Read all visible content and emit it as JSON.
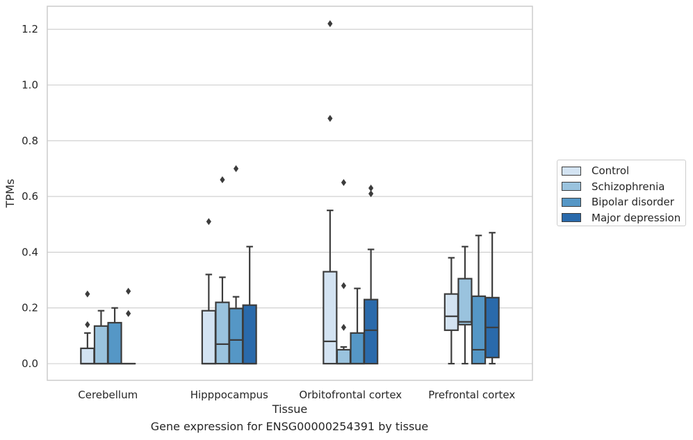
{
  "chart_data": {
    "type": "box",
    "xlabel": "Tissue",
    "ylabel": "TPMs",
    "ylim": [
      -0.06,
      1.28
    ],
    "yticks": [
      0.0,
      0.2,
      0.4,
      0.6,
      0.8,
      1.0,
      1.2
    ],
    "ytick_labels": [
      "0.0",
      "0.2",
      "0.4",
      "0.6",
      "0.8",
      "1.0",
      "1.2"
    ],
    "grid": "horizontal",
    "legend_position": "right",
    "categories": [
      "Cerebellum",
      "Hipppocampus",
      "Orbitofrontal cortex",
      "Prefrontal cortex"
    ],
    "series": [
      {
        "name": "Control",
        "color": "#d3e3f2",
        "boxes": [
          {
            "whisker_low": 0.0,
            "q1": 0.0,
            "median": 0.0,
            "q3": 0.055,
            "whisker_high": 0.11,
            "outliers": [
              0.14,
              0.25
            ]
          },
          {
            "whisker_low": 0.0,
            "q1": 0.0,
            "median": 0.0,
            "q3": 0.19,
            "whisker_high": 0.32,
            "outliers": [
              0.51
            ]
          },
          {
            "whisker_low": 0.0,
            "q1": 0.0,
            "median": 0.08,
            "q3": 0.33,
            "whisker_high": 0.55,
            "outliers": [
              0.88,
              1.22
            ]
          },
          {
            "whisker_low": 0.0,
            "q1": 0.12,
            "median": 0.17,
            "q3": 0.25,
            "whisker_high": 0.38,
            "outliers": []
          }
        ]
      },
      {
        "name": "Schizophrenia",
        "color": "#9ac3de",
        "boxes": [
          {
            "whisker_low": 0.0,
            "q1": 0.0,
            "median": 0.0,
            "q3": 0.135,
            "whisker_high": 0.19,
            "outliers": []
          },
          {
            "whisker_low": 0.0,
            "q1": 0.0,
            "median": 0.07,
            "q3": 0.22,
            "whisker_high": 0.31,
            "outliers": [
              0.66
            ]
          },
          {
            "whisker_low": 0.0,
            "q1": 0.0,
            "median": 0.0,
            "q3": 0.05,
            "whisker_high": 0.06,
            "outliers": [
              0.13,
              0.28,
              0.65
            ]
          },
          {
            "whisker_low": 0.0,
            "q1": 0.14,
            "median": 0.15,
            "q3": 0.305,
            "whisker_high": 0.42,
            "outliers": []
          }
        ]
      },
      {
        "name": "Bipolar disorder",
        "color": "#5597c6",
        "boxes": [
          {
            "whisker_low": 0.0,
            "q1": 0.0,
            "median": 0.0,
            "q3": 0.147,
            "whisker_high": 0.2,
            "outliers": []
          },
          {
            "whisker_low": 0.0,
            "q1": 0.0,
            "median": 0.085,
            "q3": 0.198,
            "whisker_high": 0.24,
            "outliers": [
              0.7
            ]
          },
          {
            "whisker_low": 0.0,
            "q1": 0.0,
            "median": 0.0,
            "q3": 0.11,
            "whisker_high": 0.27,
            "outliers": []
          },
          {
            "whisker_low": 0.0,
            "q1": 0.0,
            "median": 0.05,
            "q3": 0.242,
            "whisker_high": 0.46,
            "outliers": []
          }
        ]
      },
      {
        "name": "Major depression",
        "color": "#2a6aab",
        "boxes": [
          {
            "whisker_low": 0.0,
            "q1": 0.0,
            "median": 0.0,
            "q3": 0.0,
            "whisker_high": 0.0,
            "outliers": [
              0.18,
              0.26
            ]
          },
          {
            "whisker_low": 0.0,
            "q1": 0.0,
            "median": 0.0,
            "q3": 0.21,
            "whisker_high": 0.42,
            "outliers": []
          },
          {
            "whisker_low": 0.0,
            "q1": 0.0,
            "median": 0.12,
            "q3": 0.23,
            "whisker_high": 0.41,
            "outliers": [
              0.61,
              0.63
            ]
          },
          {
            "whisker_low": 0.0,
            "q1": 0.022,
            "median": 0.13,
            "q3": 0.237,
            "whisker_high": 0.47,
            "outliers": []
          }
        ]
      }
    ],
    "caption": "Gene expression for ENSG00000254391 by tissue"
  }
}
